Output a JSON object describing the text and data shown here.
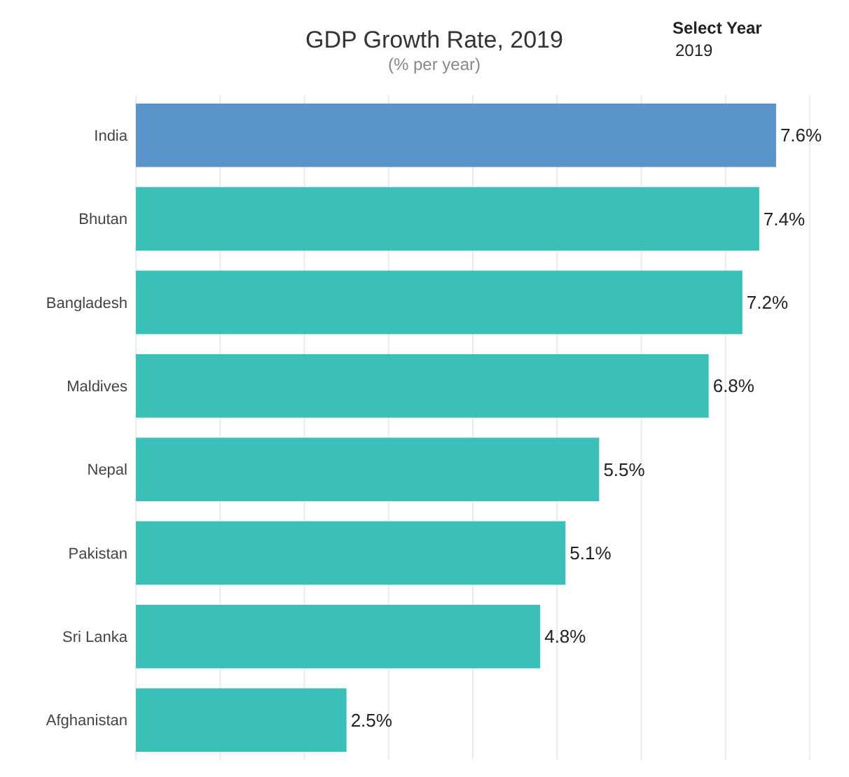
{
  "chart_data": {
    "type": "bar",
    "orientation": "horizontal",
    "title": "GDP Growth Rate, 2019",
    "subtitle": "(% per year)",
    "annotations": [
      "Select Year",
      "2019"
    ],
    "categories": [
      "India",
      "Bhutan",
      "Bangladesh",
      "Maldives",
      "Nepal",
      "Pakistan",
      "Sri Lanka",
      "Afghanistan"
    ],
    "values": [
      7.6,
      7.4,
      7.2,
      6.8,
      5.5,
      5.1,
      4.8,
      2.5
    ],
    "value_labels": [
      "7.6%",
      "7.4%",
      "7.2%",
      "6.8%",
      "5.5%",
      "5.1%",
      "4.8%",
      "2.5%"
    ],
    "colors": [
      "#5b93cb",
      "#3bbfb9",
      "#3bbfb9",
      "#3bbfb9",
      "#3bbfb9",
      "#3bbfb9",
      "#3bbfb9",
      "#3bbfb9"
    ],
    "xlim": [
      0,
      8
    ],
    "xticks": [
      {
        "value": 0,
        "label": null
      },
      {
        "value": 1,
        "label": null
      },
      {
        "value": 2,
        "label": null
      },
      {
        "value": 3,
        "label": null
      },
      {
        "value": 4,
        "label": null
      },
      {
        "value": 5,
        "label": null
      },
      {
        "value": 6,
        "label": null
      },
      {
        "value": 7,
        "label": null
      },
      {
        "value": 8,
        "label": null
      }
    ],
    "grid": "x",
    "tick_labels": "y"
  }
}
